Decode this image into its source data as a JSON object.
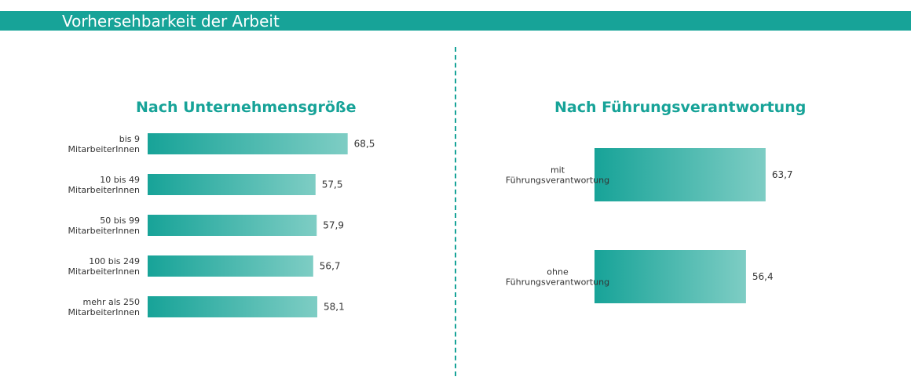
{
  "header": {
    "title": "Vorhersehbarkeit der Arbeit"
  },
  "colors": {
    "accent": "#17a398",
    "bar_start": "#17a398",
    "bar_end": "#7ecdc4",
    "text": "#333333"
  },
  "chart_data": [
    {
      "type": "bar",
      "orientation": "horizontal",
      "title": "Nach Unternehmensgröße",
      "categories": [
        [
          "bis 9",
          "MitarbeiterInnen"
        ],
        [
          "10 bis 49",
          "MitarbeiterInnen"
        ],
        [
          "50 bis 99",
          "MitarbeiterInnen"
        ],
        [
          "100 bis 249",
          "MitarbeiterInnen"
        ],
        [
          "mehr als 250",
          "MitarbeiterInnen"
        ]
      ],
      "values": [
        68.5,
        57.5,
        57.9,
        56.7,
        58.1
      ],
      "value_labels": [
        "68,5",
        "57,5",
        "57,9",
        "56,7",
        "58,1"
      ],
      "xlabel": "",
      "ylabel": "",
      "xlim": [
        0,
        100
      ]
    },
    {
      "type": "bar",
      "orientation": "horizontal",
      "title": "Nach Führungsverantwortung",
      "categories": [
        [
          "mit",
          "Führungsverantwortung"
        ],
        [
          "ohne",
          "Führungsverantwortung"
        ]
      ],
      "values": [
        63.7,
        56.4
      ],
      "value_labels": [
        "63,7",
        "56,4"
      ],
      "xlabel": "",
      "ylabel": "",
      "xlim": [
        0,
        100
      ]
    }
  ]
}
